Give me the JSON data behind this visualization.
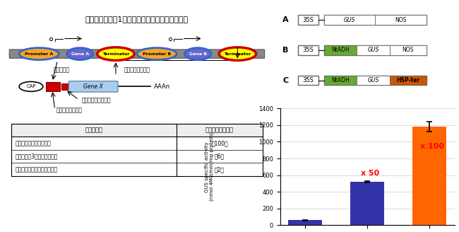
{
  "title": "任意の発現量（1～数百倍）が期待できる発現系",
  "bar_values": [
    60,
    520,
    1185
  ],
  "bar_errors": [
    5,
    10,
    60
  ],
  "bar_colors": [
    "#3333aa",
    "#3333aa",
    "#ff6600"
  ],
  "bar_labels": [
    "A",
    "B",
    "C"
  ],
  "bar_annotations": [
    "",
    "x 50",
    "x 100"
  ],
  "bar_annotation_colors": [
    "red",
    "red",
    "red"
  ],
  "ylabel_line1": "GUS specific activity",
  "ylabel_line2": "(nmol 4MU/min/mg protein)",
  "ylim": [
    0,
    1400
  ],
  "yticks": [
    0,
    200,
    400,
    600,
    800,
    1000,
    1200,
    1400
  ],
  "construct_A": {
    "label": "A",
    "parts": [
      {
        "text": "35S",
        "color": "#ffffff",
        "text_style": "normal"
      },
      {
        "text": "GUS",
        "color": "#ffffff",
        "text_style": "italic"
      },
      {
        "text": "NOS",
        "color": "#ffffff",
        "text_style": "normal"
      }
    ]
  },
  "construct_B": {
    "label": "B",
    "parts": [
      {
        "text": "35S",
        "color": "#ffffff",
        "text_style": "normal"
      },
      {
        "text": "NtADH",
        "color": "#66aa33",
        "text_style": "normal"
      },
      {
        "text": "GUS",
        "color": "#ffffff",
        "text_style": "italic"
      },
      {
        "text": "NOS",
        "color": "#ffffff",
        "text_style": "normal"
      }
    ]
  },
  "construct_C": {
    "label": "C",
    "parts": [
      {
        "text": "35S",
        "color": "#ffffff",
        "text_style": "normal"
      },
      {
        "text": "NtADH",
        "color": "#66aa33",
        "text_style": "normal"
      },
      {
        "text": "GUS",
        "color": "#ffffff",
        "text_style": "italic"
      },
      {
        "text": "HSP-ter",
        "color": "#cc4400",
        "text_style": "normal"
      }
    ]
  },
  "table_headers": [
    "活用の種類",
    "期待できる発現量"
  ],
  "table_rows": [
    [
      "翻訳エンハンサーの活用",
      "～100倍"
    ],
    [
      "近傍配列（3塔基）の最適化",
      "～6倍"
    ],
    [
      "効率的な転写終結領域の活用",
      "～2倍"
    ]
  ],
  "diagram_labels": {
    "gene_intro": "遣伝子導入",
    "efficient_termination": "効率的な転写終結",
    "AAAn": "AAAn",
    "kozak": "開始コドン近傍配列",
    "enhancer": "翻訳エンハンサー"
  }
}
